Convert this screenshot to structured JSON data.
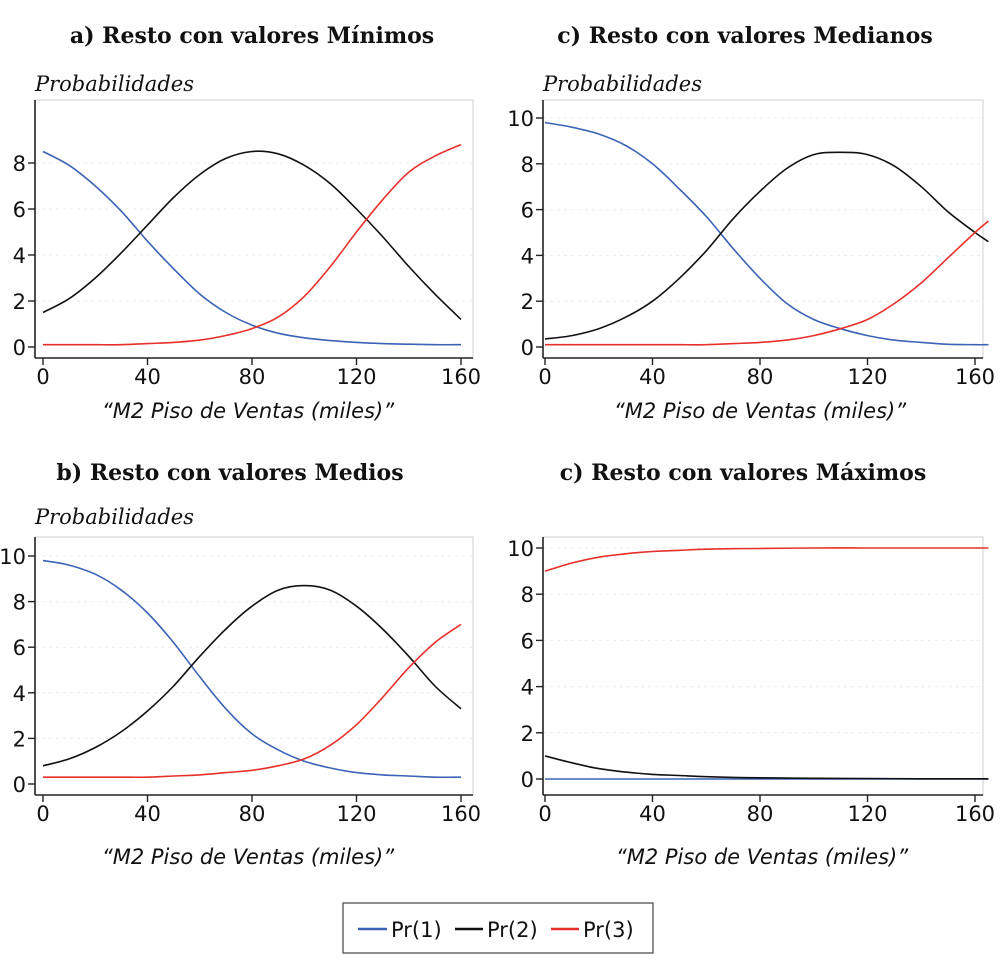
{
  "series_colors": {
    "pr1": "#3b63b6",
    "pr2": "#111111",
    "pr3": "#e8302a"
  },
  "legend": [
    {
      "key": "pr1",
      "label": "Pr(1)"
    },
    {
      "key": "pr2",
      "label": "Pr(2)"
    },
    {
      "key": "pr3",
      "label": "Pr(3)"
    }
  ],
  "chart_data": [
    {
      "type": "line",
      "title": "a) Resto con valores Mínimos",
      "ylabel": "Probabilidades",
      "xlabel": "“M2 Piso de Ventas (miles)”",
      "xlim": [
        0,
        160
      ],
      "ylim": [
        0,
        10
      ],
      "xticks": [
        0,
        40,
        80,
        120,
        160
      ],
      "yticks": [
        0,
        2,
        4,
        6,
        8
      ],
      "x": [
        0,
        10,
        20,
        30,
        40,
        50,
        60,
        70,
        80,
        90,
        100,
        110,
        120,
        130,
        140,
        150,
        160
      ],
      "series": [
        {
          "key": "pr1",
          "name": "Pr(1)",
          "values": [
            8.5,
            7.9,
            7.0,
            5.9,
            4.6,
            3.4,
            2.3,
            1.5,
            0.95,
            0.6,
            0.4,
            0.28,
            0.2,
            0.15,
            0.12,
            0.1,
            0.1
          ]
        },
        {
          "key": "pr2",
          "name": "Pr(2)",
          "values": [
            1.5,
            2.1,
            3.0,
            4.1,
            5.3,
            6.5,
            7.5,
            8.2,
            8.5,
            8.4,
            7.9,
            7.1,
            6.0,
            4.8,
            3.5,
            2.3,
            1.2
          ]
        },
        {
          "key": "pr3",
          "name": "Pr(3)",
          "values": [
            0.1,
            0.1,
            0.1,
            0.1,
            0.15,
            0.2,
            0.3,
            0.5,
            0.8,
            1.3,
            2.2,
            3.5,
            5.0,
            6.4,
            7.6,
            8.3,
            8.8
          ]
        }
      ]
    },
    {
      "type": "line",
      "title": "c) Resto con valores Medianos",
      "ylabel": "Probabilidades",
      "xlabel": "“M2 Piso de Ventas (miles)”",
      "xlim": [
        0,
        160
      ],
      "ylim": [
        0,
        10
      ],
      "xticks": [
        0,
        40,
        80,
        120,
        160
      ],
      "yticks": [
        0,
        2,
        4,
        6,
        8,
        10
      ],
      "x": [
        0,
        10,
        20,
        30,
        40,
        50,
        60,
        70,
        80,
        90,
        100,
        110,
        120,
        130,
        140,
        150,
        160,
        165
      ],
      "series": [
        {
          "key": "pr1",
          "name": "Pr(1)",
          "values": [
            9.8,
            9.6,
            9.3,
            8.8,
            8.0,
            6.9,
            5.7,
            4.3,
            3.0,
            1.9,
            1.2,
            0.8,
            0.5,
            0.3,
            0.2,
            0.12,
            0.1,
            0.1
          ]
        },
        {
          "key": "pr2",
          "name": "Pr(2)",
          "values": [
            0.35,
            0.5,
            0.8,
            1.3,
            2.0,
            3.0,
            4.2,
            5.6,
            6.8,
            7.8,
            8.4,
            8.5,
            8.4,
            7.9,
            7.0,
            5.9,
            5.0,
            4.6
          ]
        },
        {
          "key": "pr3",
          "name": "Pr(3)",
          "values": [
            0.1,
            0.1,
            0.1,
            0.1,
            0.1,
            0.1,
            0.1,
            0.15,
            0.2,
            0.3,
            0.5,
            0.8,
            1.2,
            1.9,
            2.8,
            3.9,
            5.0,
            5.5
          ]
        }
      ]
    },
    {
      "type": "line",
      "title": "b) Resto con valores Medios",
      "ylabel": "Probabilidades",
      "xlabel": "“M2 Piso de Ventas (miles)”",
      "xlim": [
        0,
        160
      ],
      "ylim": [
        0,
        10
      ],
      "xticks": [
        0,
        40,
        80,
        120,
        160
      ],
      "yticks": [
        0,
        2,
        4,
        6,
        8,
        10
      ],
      "x": [
        0,
        10,
        20,
        30,
        40,
        50,
        60,
        70,
        80,
        90,
        100,
        110,
        120,
        130,
        140,
        150,
        160
      ],
      "series": [
        {
          "key": "pr1",
          "name": "Pr(1)",
          "values": [
            9.8,
            9.6,
            9.2,
            8.5,
            7.5,
            6.2,
            4.7,
            3.3,
            2.2,
            1.5,
            1.0,
            0.7,
            0.5,
            0.4,
            0.35,
            0.3,
            0.3
          ]
        },
        {
          "key": "pr2",
          "name": "Pr(2)",
          "values": [
            0.8,
            1.1,
            1.6,
            2.3,
            3.2,
            4.3,
            5.6,
            6.8,
            7.8,
            8.5,
            8.7,
            8.5,
            7.8,
            6.8,
            5.6,
            4.3,
            3.3
          ]
        },
        {
          "key": "pr3",
          "name": "Pr(3)",
          "values": [
            0.3,
            0.3,
            0.3,
            0.3,
            0.3,
            0.35,
            0.4,
            0.5,
            0.6,
            0.8,
            1.1,
            1.7,
            2.6,
            3.8,
            5.1,
            6.2,
            7.0
          ]
        }
      ]
    },
    {
      "type": "line",
      "title": "c) Resto con valores Máximos",
      "ylabel": "",
      "xlabel": "“M2 Piso de Ventas (miles)”",
      "xlim": [
        0,
        160
      ],
      "ylim": [
        0,
        10
      ],
      "xticks": [
        0,
        40,
        80,
        120,
        160
      ],
      "yticks": [
        0,
        2,
        4,
        6,
        8,
        10
      ],
      "x": [
        0,
        10,
        20,
        30,
        40,
        50,
        60,
        70,
        80,
        100,
        120,
        140,
        160,
        165
      ],
      "series": [
        {
          "key": "pr1",
          "name": "Pr(1)",
          "values": [
            0.0,
            0.0,
            0.0,
            0.0,
            0.0,
            0.0,
            0.0,
            0.0,
            0.0,
            0.0,
            0.0,
            0.0,
            0.0,
            0.0
          ]
        },
        {
          "key": "pr2",
          "name": "Pr(2)",
          "values": [
            1.0,
            0.7,
            0.45,
            0.3,
            0.2,
            0.15,
            0.1,
            0.07,
            0.05,
            0.03,
            0.02,
            0.01,
            0.01,
            0.01
          ]
        },
        {
          "key": "pr3",
          "name": "Pr(3)",
          "values": [
            9.0,
            9.35,
            9.6,
            9.75,
            9.85,
            9.9,
            9.95,
            9.97,
            9.98,
            10.0,
            10.0,
            10.0,
            10.0,
            10.0
          ]
        }
      ]
    }
  ]
}
